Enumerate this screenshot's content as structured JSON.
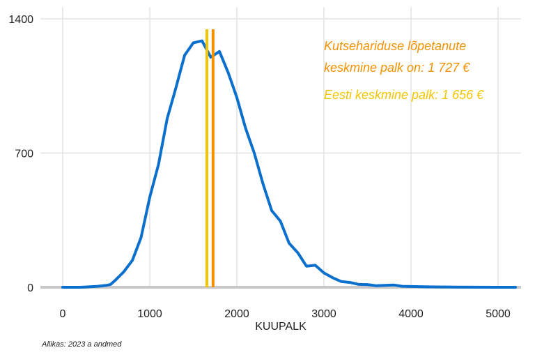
{
  "chart_data": {
    "type": "line",
    "xlabel": "KUUPALK",
    "ylabel": "",
    "xlim": [
      0,
      5200
    ],
    "ylim": [
      0,
      1400
    ],
    "x_ticks": [
      0,
      1000,
      2000,
      3000,
      4000,
      5000
    ],
    "y_ticks": [
      0,
      700,
      1400
    ],
    "x_tick_labels": [
      "0",
      "1000",
      "2000",
      "3000",
      "4000",
      "5000"
    ],
    "y_tick_labels": [
      "0",
      "700",
      "1400"
    ],
    "grid": true,
    "series": [
      {
        "color": "#0B6FCE",
        "x": [
          0,
          100,
          200,
          300,
          400,
          500,
          550,
          600,
          700,
          800,
          900,
          1000,
          1100,
          1200,
          1300,
          1400,
          1500,
          1600,
          1700,
          1800,
          1900,
          2000,
          2100,
          2200,
          2300,
          2400,
          2500,
          2600,
          2700,
          2800,
          2900,
          3000,
          3100,
          3200,
          3300,
          3400,
          3500,
          3600,
          3700,
          3800,
          3900,
          4000,
          4200,
          4500,
          5000,
          5200
        ],
        "y": [
          0,
          0,
          0,
          2,
          5,
          10,
          15,
          35,
          80,
          140,
          260,
          470,
          640,
          880,
          1040,
          1210,
          1275,
          1285,
          1200,
          1230,
          1120,
          990,
          830,
          700,
          540,
          400,
          345,
          230,
          180,
          110,
          115,
          75,
          50,
          30,
          25,
          15,
          14,
          8,
          10,
          12,
          5,
          4,
          2,
          1,
          0,
          0
        ]
      }
    ],
    "reference_lines": [
      {
        "x": 1656,
        "color": "#F2C500"
      },
      {
        "x": 1727,
        "color": "#F39200"
      }
    ],
    "annotations": [
      {
        "text": "Kutsehariduse lõpetanute",
        "color": "#F39200"
      },
      {
        "text": " keskmine palk on: 1 727 €",
        "color": "#F39200"
      },
      {
        "text": "Eesti keskmine palk: 1 656 €",
        "color": "#F2C500"
      }
    ],
    "caption": "Allikas: 2023 a andmed"
  }
}
